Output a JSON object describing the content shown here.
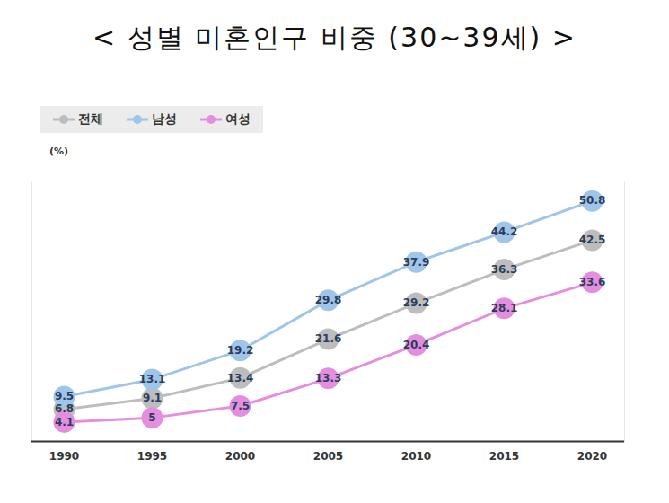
{
  "chart_data": {
    "type": "line",
    "title": "< 성별 미혼인구 비중 (30~39세) >",
    "ylabel": "(%)",
    "categories": [
      "1990",
      "1995",
      "2000",
      "2005",
      "2010",
      "2015",
      "2020"
    ],
    "series": [
      {
        "name": "전체",
        "color": "#bdbdbd",
        "values": [
          6.8,
          9.1,
          13.4,
          21.6,
          29.2,
          36.3,
          42.5
        ]
      },
      {
        "name": "남성",
        "color": "#9fc5e8",
        "values": [
          9.5,
          13.1,
          19.2,
          29.8,
          37.9,
          44.2,
          50.8
        ]
      },
      {
        "name": "여성",
        "color": "#e58ee0",
        "values": [
          4.1,
          5,
          7.5,
          13.3,
          20.4,
          28.1,
          33.6
        ]
      }
    ],
    "ylim": [
      0,
      55
    ],
    "tick_labels": "x",
    "legend": "top-left",
    "marker": "circle",
    "data_labels": true
  }
}
